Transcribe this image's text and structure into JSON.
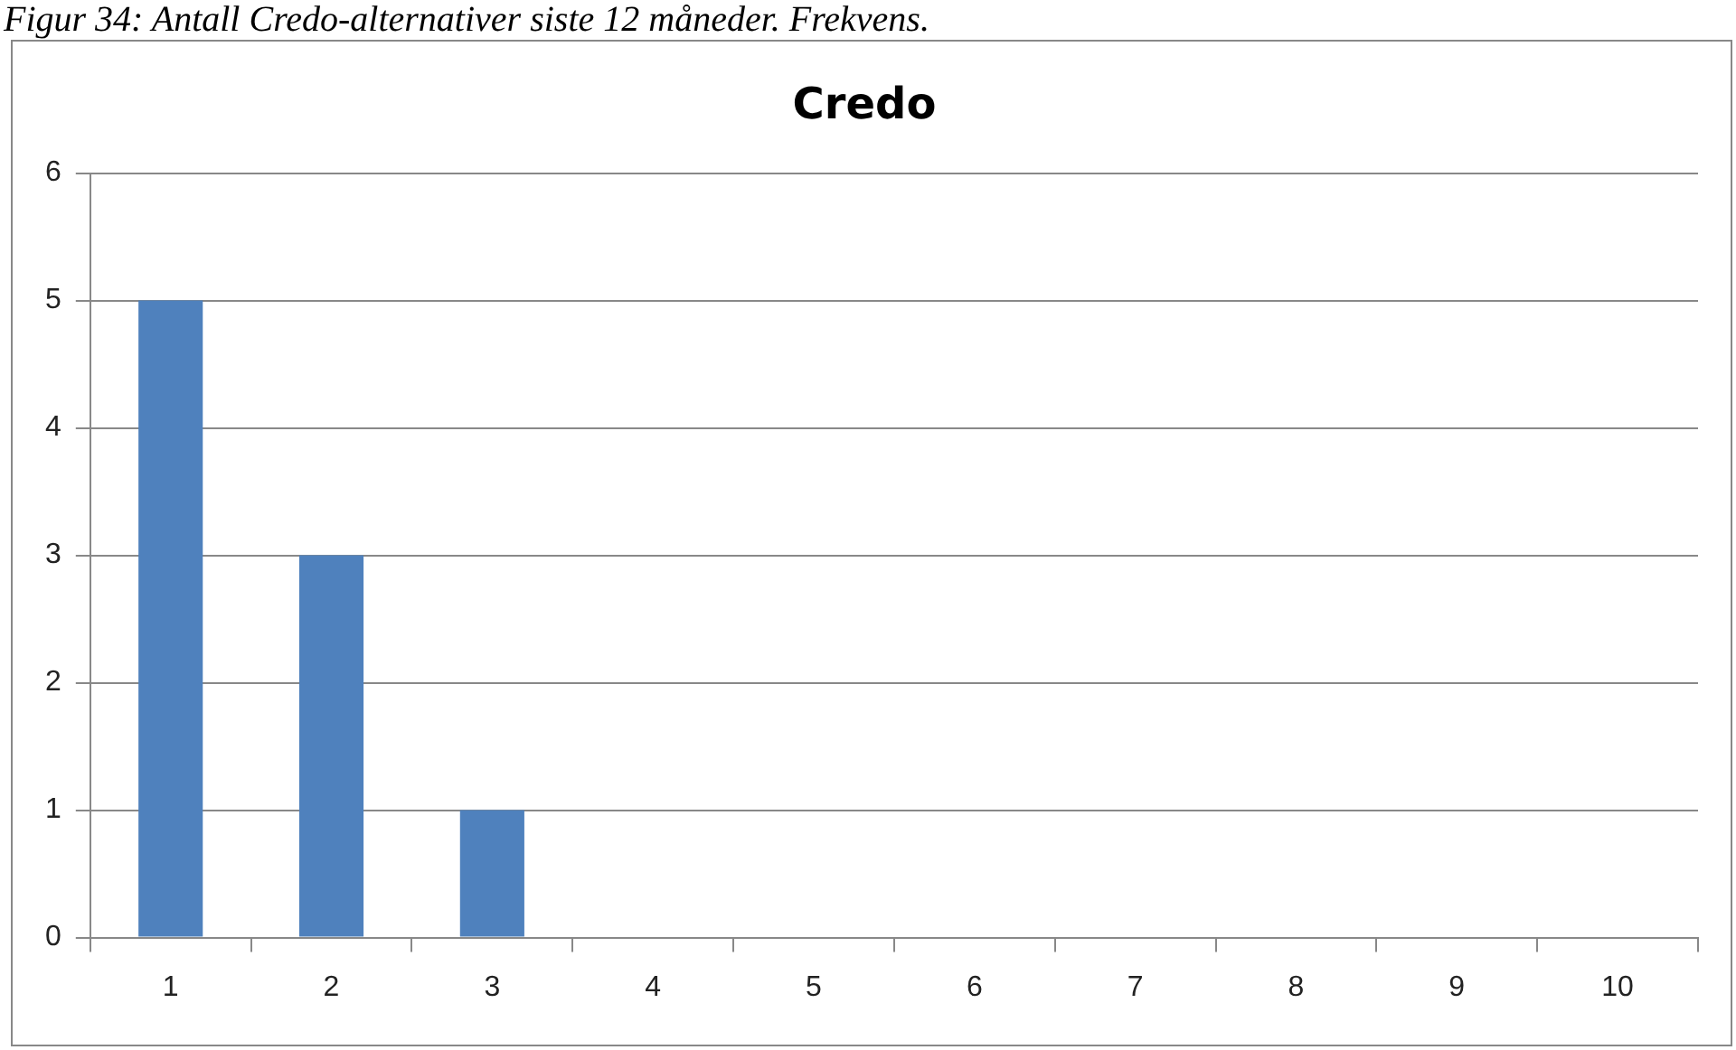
{
  "chart_data": {
    "type": "bar",
    "title": "Credo",
    "annotations": [
      "Figur 34: Antall Credo-alternativer siste 12 måneder. Frekvens."
    ],
    "categories": [
      "1",
      "2",
      "3",
      "4",
      "5",
      "6",
      "7",
      "8",
      "9",
      "10"
    ],
    "values": [
      5,
      3,
      1,
      0,
      0,
      0,
      0,
      0,
      0,
      0
    ],
    "color": "#4f81bd",
    "ylim": [
      0,
      6
    ],
    "yticks": [
      0,
      1,
      2,
      3,
      4,
      5,
      6
    ],
    "grid": "y",
    "legend": false
  }
}
